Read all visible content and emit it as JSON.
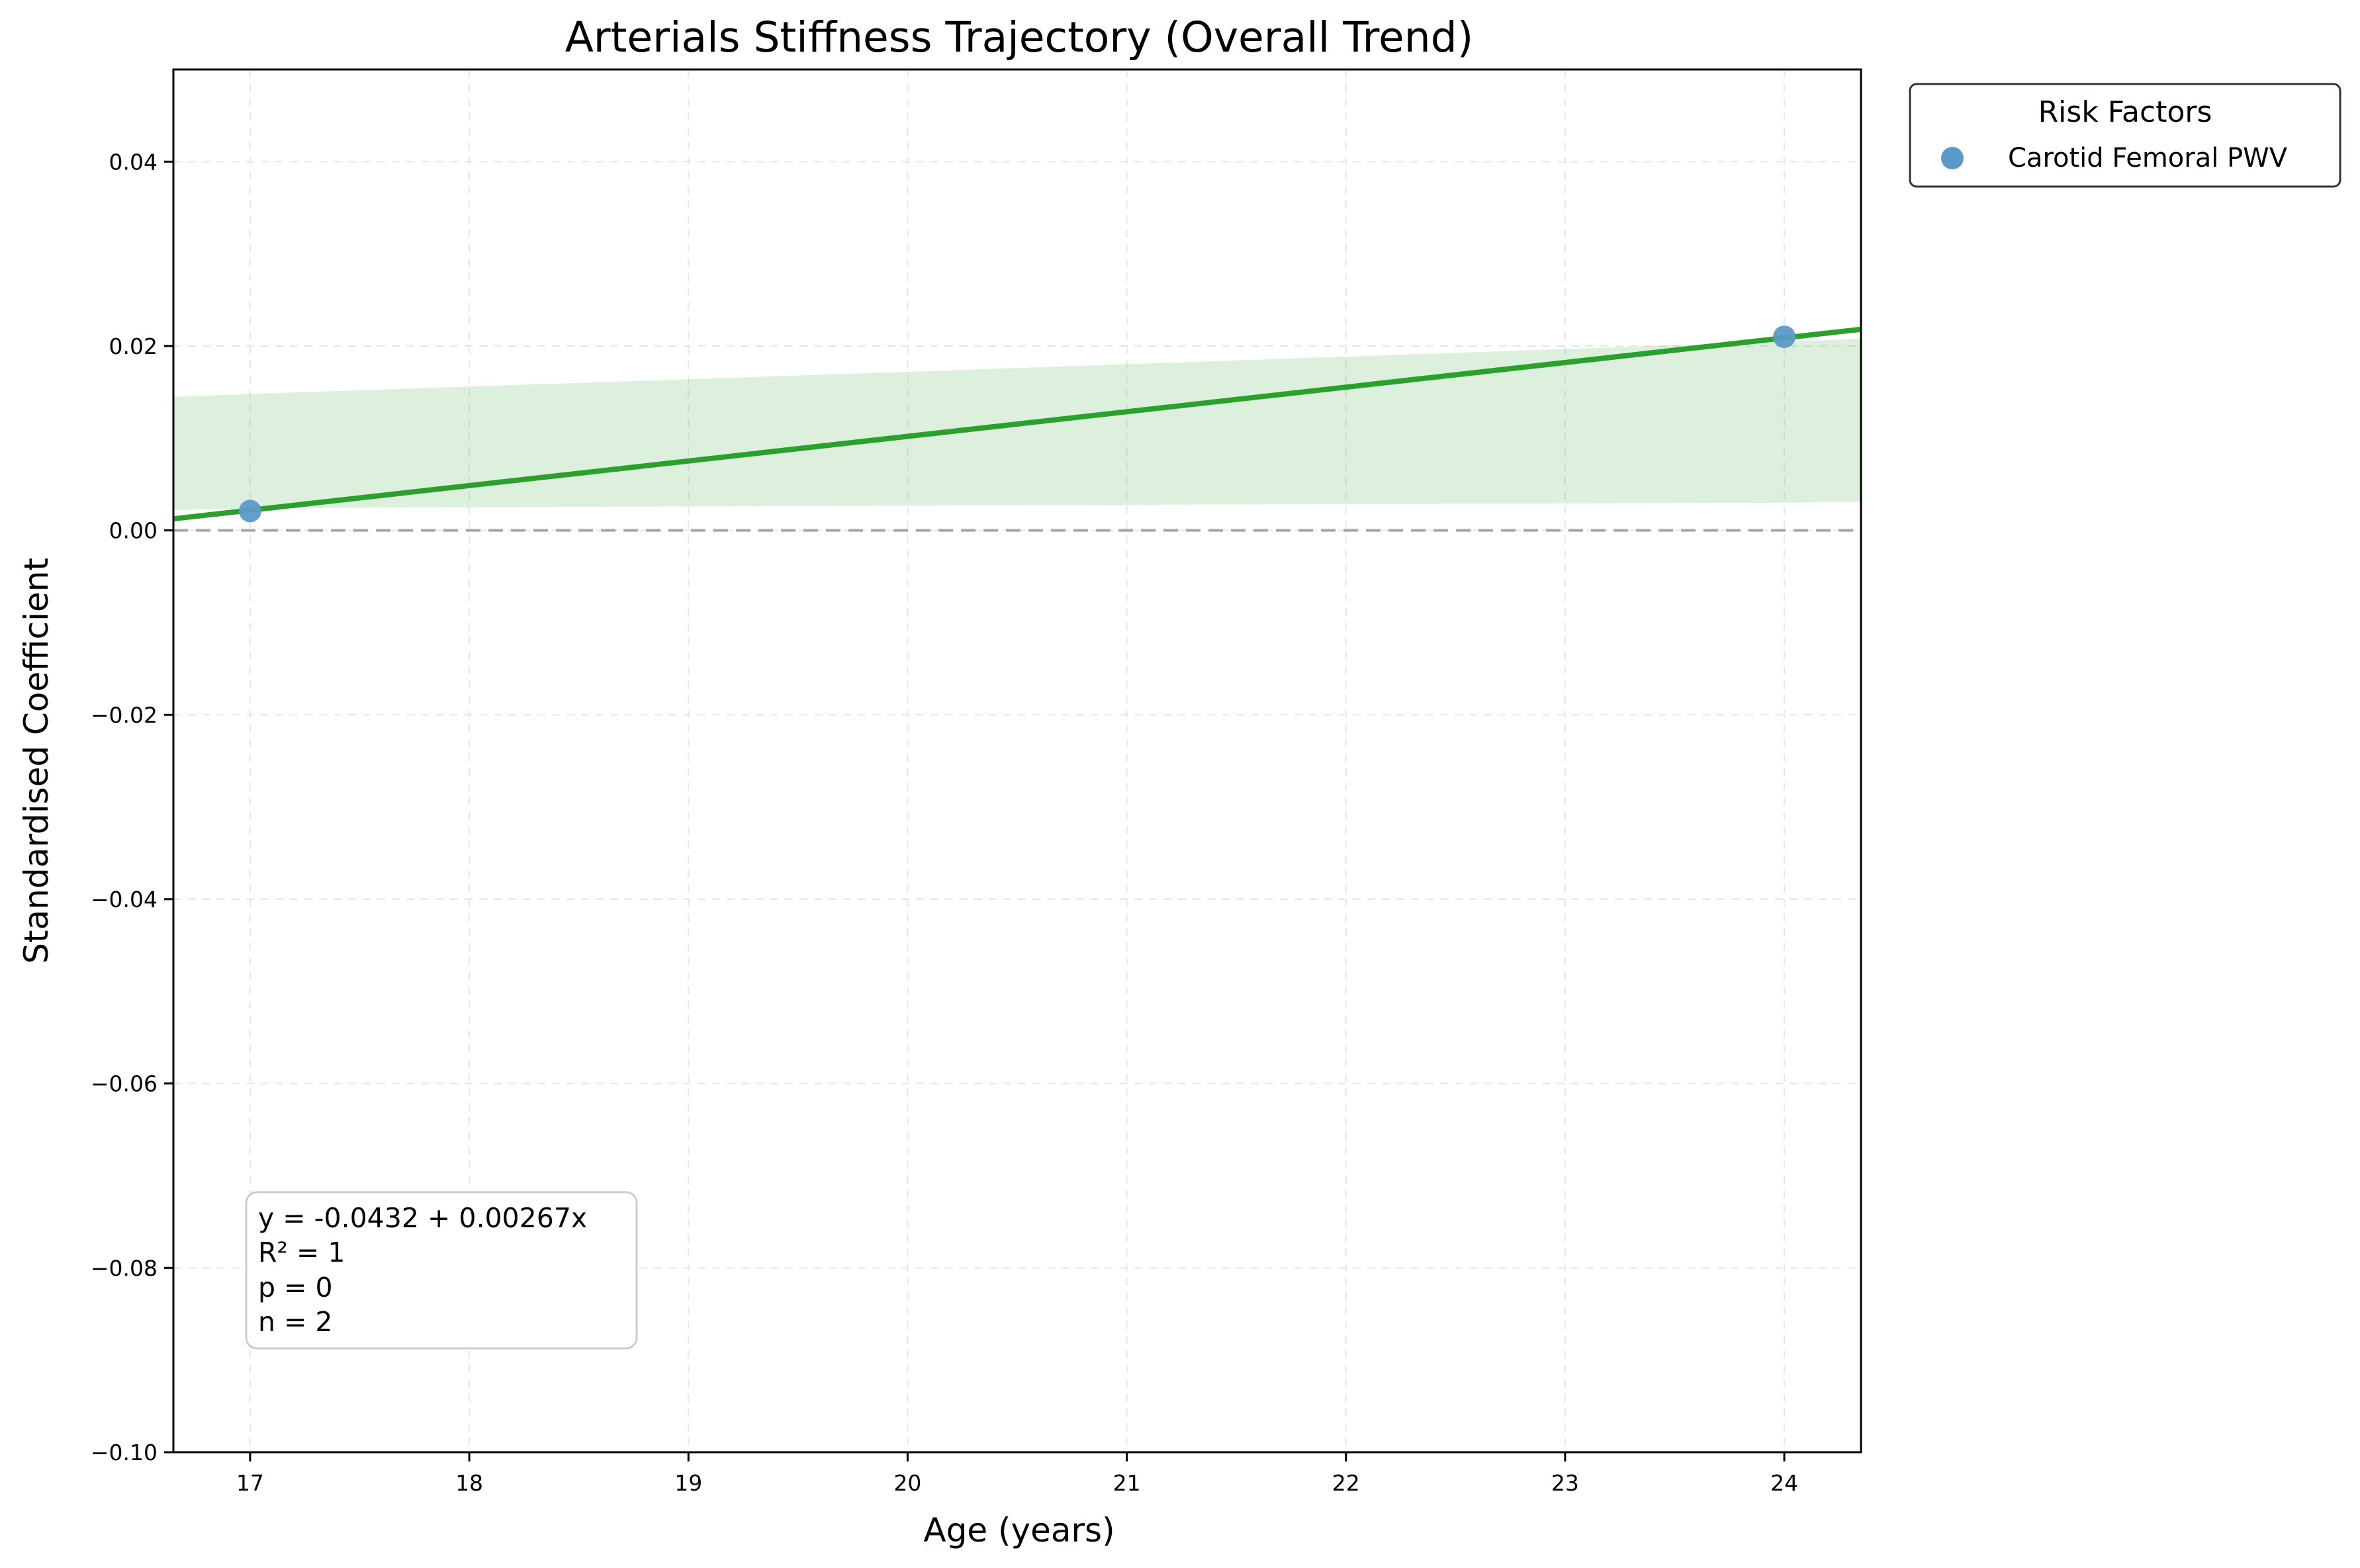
{
  "chart_data": {
    "type": "scatter",
    "title": "Arterials Stiffness Trajectory (Overall Trend)",
    "xlabel": "Age (years)",
    "ylabel": "Standardised Coefficient",
    "xlim": [
      16.65,
      24.35
    ],
    "ylim": [
      -0.1,
      0.05
    ],
    "xticks": [
      17,
      18,
      19,
      20,
      21,
      22,
      23,
      24
    ],
    "yticks": [
      0.04,
      0.02,
      0.0,
      -0.02,
      -0.04,
      -0.06,
      -0.08,
      -0.1
    ],
    "ytick_labels": [
      "0.04",
      "0.02",
      "0.00",
      "−0.02",
      "−0.04",
      "−0.06",
      "−0.08",
      "−0.10"
    ],
    "grid": true,
    "legend": {
      "title": "Risk Factors",
      "placement": "outside-top-right"
    },
    "series": [
      {
        "name": "Carotid Femoral PWV",
        "color": "#5b9ac8",
        "points": [
          {
            "x": 17,
            "y": 0.0021
          },
          {
            "x": 24,
            "y": 0.021
          }
        ]
      }
    ],
    "trend": {
      "intercept": -0.0432,
      "slope": 0.00267,
      "color": "#2ca02c"
    },
    "confidence_band": {
      "color": "#2ca02c",
      "x": [
        16.65,
        17,
        20,
        24,
        24.35
      ],
      "upper": [
        0.0145,
        0.0148,
        0.0172,
        0.0205,
        0.0208
      ],
      "lower": [
        0.0022,
        0.0024,
        0.0027,
        0.003,
        0.0031
      ]
    },
    "reference_line": {
      "y": 0.0,
      "color": "#a8a8a8"
    },
    "stats_box": {
      "equation": "y = -0.0432 + 0.00267x",
      "r2": "R² = 1",
      "p": "p = 0",
      "n": "n = 2"
    }
  }
}
